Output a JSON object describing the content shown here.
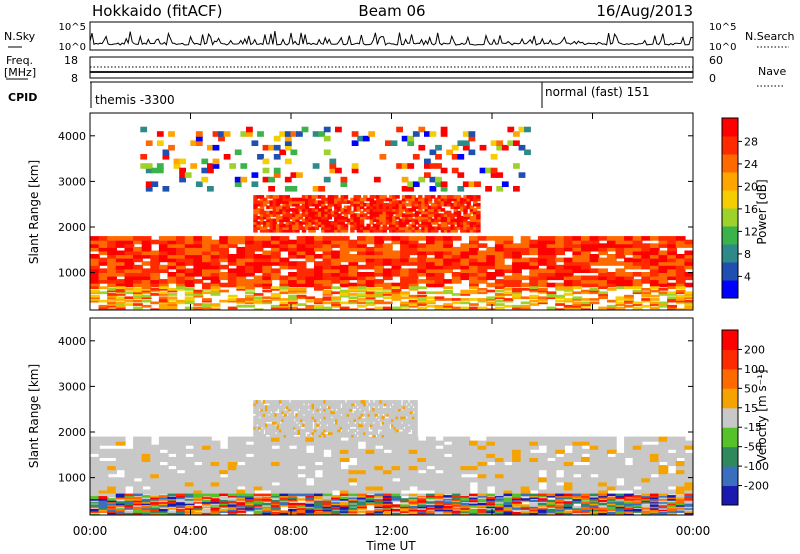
{
  "header": {
    "title_left": "Hokkaido (fitACF)",
    "title_center": "Beam 06",
    "title_right": "16/Aug/2013"
  },
  "top_panels": {
    "nsky_label": "N.Sky",
    "nsky_ticks": [
      "10^5",
      "10^0"
    ],
    "nsearch_label": "N.Search",
    "nsearch_ticks": [
      "10^5",
      "10^0"
    ],
    "freq_label_1": "Freq.",
    "freq_label_2": "[MHz]",
    "freq_ticks": [
      "18",
      "8"
    ],
    "nave_label": "Nave",
    "nave_ticks": [
      "60",
      "0"
    ],
    "cpid_label": "CPID",
    "cpid_entries": [
      {
        "label": "themis -3300",
        "start": "00:00"
      },
      {
        "label": "normal (fast) 151",
        "start": "18:00"
      }
    ]
  },
  "chart_data": [
    {
      "type": "heatmap",
      "title": "",
      "xlabel": "Time UT",
      "ylabel": "Slant Range [km]",
      "x_ticks": [
        "00:00",
        "04:00",
        "08:00",
        "12:00",
        "16:00",
        "20:00",
        "00:00"
      ],
      "y_ticks": [
        "1000",
        "2000",
        "3000",
        "4000"
      ],
      "xlim_hours": [
        0,
        24
      ],
      "ylim_km": [
        180,
        4500
      ],
      "colorbar": {
        "label": "Power [dB]",
        "ticks": [
          "4",
          "8",
          "12",
          "16",
          "20",
          "24",
          "28"
        ],
        "colors": [
          "#0000ff",
          "#1f4fb0",
          "#2e8a8a",
          "#3ab34a",
          "#9cd22a",
          "#f5cd00",
          "#ffa500",
          "#ff6a00",
          "#ff2a00",
          "#ff0000"
        ]
      },
      "echo_bands": [
        {
          "t0": 0.0,
          "t1": 24.0,
          "r0": 700,
          "r1": 1800,
          "intensity": "high"
        },
        {
          "t0": 6.5,
          "t1": 15.5,
          "r0": 1900,
          "r1": 2700,
          "intensity": "high"
        },
        {
          "t0": 0.0,
          "t1": 24.0,
          "r0": 180,
          "r1": 700,
          "intensity": "low"
        },
        {
          "t0": 2.0,
          "t1": 17.5,
          "r0": 2800,
          "r1": 4200,
          "intensity": "sparse"
        }
      ]
    },
    {
      "type": "heatmap",
      "title": "",
      "xlabel": "Time UT",
      "ylabel": "Slant Range [km]",
      "x_ticks": [
        "00:00",
        "04:00",
        "08:00",
        "12:00",
        "16:00",
        "20:00",
        "00:00"
      ],
      "y_ticks": [
        "1000",
        "2000",
        "3000",
        "4000"
      ],
      "xlim_hours": [
        0,
        24
      ],
      "ylim_km": [
        180,
        4500
      ],
      "colorbar": {
        "label": "Velocity [m s⁻¹]",
        "ticks": [
          "200",
          "100",
          "50",
          "15",
          "-15",
          "-50",
          "-100",
          "-200"
        ],
        "colors": [
          "#1a1ab0",
          "#3a6fc0",
          "#2e8a5a",
          "#55c22a",
          "#c8c8c8",
          "#f5a300",
          "#ff6a00",
          "#ff2a00",
          "#ff0000"
        ]
      },
      "echo_bands": [
        {
          "t0": 0.0,
          "t1": 24.0,
          "r0": 650,
          "r1": 1900,
          "class": "ground-scatter"
        },
        {
          "t0": 6.5,
          "t1": 13.0,
          "r0": 1900,
          "r1": 2700,
          "class": "ground-scatter"
        },
        {
          "t0": 0.0,
          "t1": 24.0,
          "r0": 180,
          "r1": 650,
          "class": "mixed"
        }
      ]
    }
  ]
}
